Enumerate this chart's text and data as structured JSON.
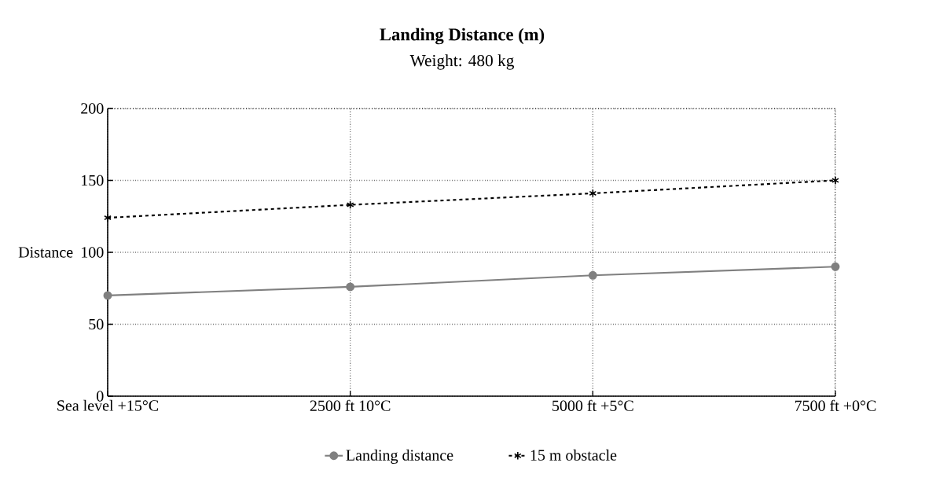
{
  "chart_data": {
    "type": "line",
    "title": "Landing Distance (m)",
    "subtitle": "Weight: 480 kg",
    "ylabel": "Distance",
    "categories": [
      "Sea level  +15°C",
      "2500 ft   10°C",
      "5000 ft   +5°C",
      "7500 ft   +0°C"
    ],
    "series": [
      {
        "name": "Landing distance",
        "color": "#808080",
        "values": [
          70,
          76,
          84,
          90
        ],
        "marker": "circle",
        "line_style": "solid"
      },
      {
        "name": "15 m obstacle",
        "color": "#000000",
        "values": [
          124,
          133,
          141,
          150
        ],
        "marker": "cross",
        "line_style": "dashed"
      }
    ],
    "ylim": [
      0,
      200
    ],
    "yticks": [
      0,
      50,
      100,
      150,
      200
    ],
    "grid": true,
    "legend": "bottom"
  }
}
